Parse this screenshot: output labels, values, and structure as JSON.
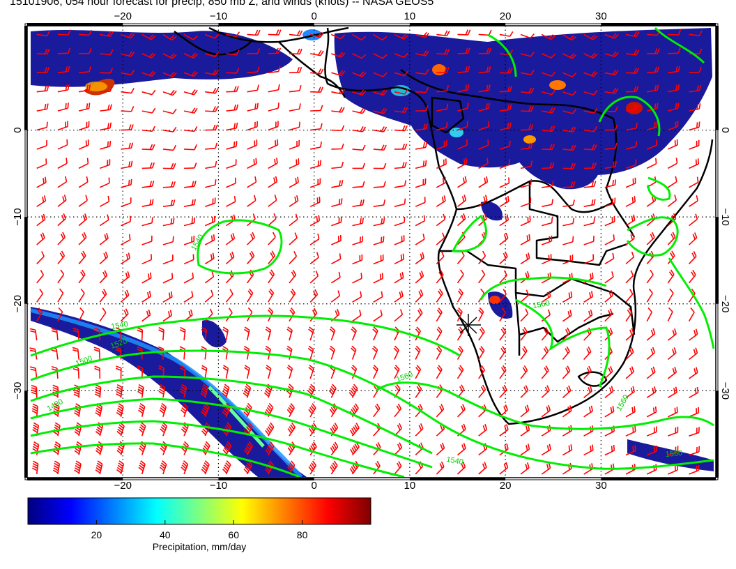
{
  "title": "15101906, 054 hour forecast for precip, 850 mb Z, and winds (knots) -- NASA GEOS5",
  "map": {
    "lon_ticks": [
      -20,
      -10,
      0,
      10,
      20,
      30
    ],
    "lat_ticks": [
      0,
      -10,
      -20,
      -30
    ],
    "lon_labels": [
      "−20",
      "−10",
      "0",
      "10",
      "20",
      "30"
    ],
    "lat_labels": [
      "0",
      "−10",
      "−20",
      "−30"
    ],
    "lon_range": [
      -30,
      42
    ],
    "lat_range": [
      -40,
      12
    ],
    "grid": "dotted",
    "contour_color": "#00ee00",
    "barb_color": "#ff0000",
    "coast_color": "#000000",
    "contour_labels": [
      "1540",
      "1540",
      "1520",
      "1500",
      "1480",
      "1560",
      "1560",
      "1560",
      "1540",
      "1560"
    ]
  },
  "colorbar": {
    "label": "Precipitation, mm/day",
    "tick_values": [
      20,
      40,
      60,
      80
    ],
    "tick_labels": [
      "20",
      "40",
      "60",
      "80"
    ],
    "range": [
      0,
      100
    ],
    "colors": [
      "#00007f",
      "#0000ff",
      "#007fff",
      "#00ffff",
      "#7fff7f",
      "#ffff00",
      "#ff7f00",
      "#ff0000",
      "#7f0000"
    ]
  }
}
